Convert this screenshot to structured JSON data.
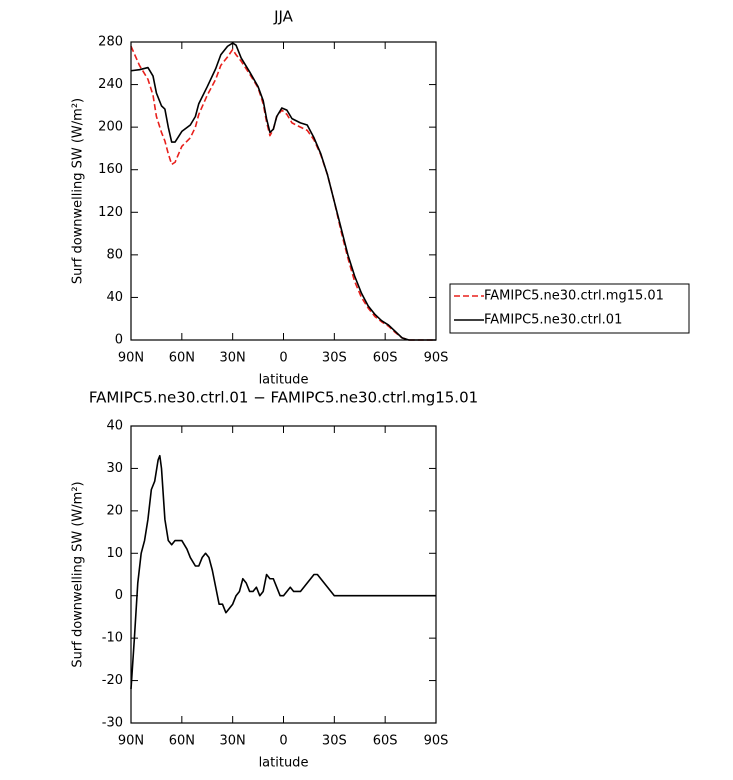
{
  "chart_data": [
    {
      "type": "line",
      "title": "JJA",
      "x_label": "latitude",
      "y_label": "Surf downwelling SW (W/m²)",
      "x": [
        90,
        85,
        80,
        77,
        75,
        72,
        70,
        68,
        66,
        64,
        60,
        55,
        52,
        50,
        45,
        40,
        37,
        33,
        30,
        28,
        25,
        20,
        15,
        12,
        10,
        8,
        6,
        4,
        1,
        -2,
        -5,
        -10,
        -14,
        -18,
        -22,
        -26,
        -30,
        -34,
        -38,
        -42,
        -46,
        -50,
        -54,
        -58,
        -62,
        -66,
        -70,
        -74,
        -80,
        -85,
        -90
      ],
      "xlim": [
        90,
        -90
      ],
      "xticks": [
        {
          "value": 90,
          "label": "90N"
        },
        {
          "value": 60,
          "label": "60N"
        },
        {
          "value": 30,
          "label": "30N"
        },
        0,
        {
          "value": -30,
          "label": "30S"
        },
        {
          "value": -60,
          "label": "60S"
        },
        {
          "value": -90,
          "label": "90S"
        }
      ],
      "ylim": [
        0,
        280
      ],
      "yticks": [
        0,
        40,
        80,
        120,
        160,
        200,
        240,
        280
      ],
      "legend": "outside-right",
      "series": [
        {
          "name": "FAMIPC5.ne30.ctrl.mg15.01",
          "color": "#e8201c",
          "linestyle": "dashed",
          "values": [
            276,
            258,
            245,
            230,
            210,
            195,
            187,
            175,
            165,
            167,
            182,
            190,
            200,
            212,
            230,
            245,
            258,
            266,
            273,
            268,
            262,
            250,
            237,
            222,
            205,
            192,
            198,
            210,
            216,
            212,
            204,
            200,
            197,
            188,
            174,
            155,
            130,
            102,
            77,
            55,
            40,
            30,
            22,
            17,
            13,
            7,
            2,
            0,
            0,
            0,
            0
          ]
        },
        {
          "name": "FAMIPC5.ne30.ctrl.01",
          "color": "#000000",
          "linestyle": "solid",
          "values": [
            253,
            254,
            256,
            248,
            232,
            220,
            217,
            200,
            186,
            186,
            196,
            202,
            210,
            222,
            238,
            255,
            268,
            276,
            279,
            277,
            265,
            252,
            238,
            225,
            208,
            195,
            198,
            210,
            218,
            216,
            208,
            204,
            202,
            190,
            175,
            155,
            130,
            105,
            80,
            60,
            44,
            32,
            24,
            18,
            14,
            8,
            2,
            0,
            0,
            0,
            0
          ]
        }
      ]
    },
    {
      "type": "line",
      "title": "FAMIPC5.ne30.ctrl.01 − FAMIPC5.ne30.ctrl.mg15.01",
      "x_label": "latitude",
      "y_label": "Surf downwelling SW (W/m²)",
      "x": [
        90,
        88,
        86,
        84,
        82,
        80,
        78,
        76,
        74,
        73,
        72,
        70,
        68,
        66,
        64,
        62,
        60,
        57,
        55,
        52,
        50,
        48,
        46,
        44,
        42,
        40,
        38,
        36,
        34,
        32,
        30,
        28,
        26,
        24,
        22,
        20,
        18,
        16,
        14,
        12,
        10,
        8,
        6,
        4,
        2,
        0,
        -2,
        -4,
        -6,
        -8,
        -10,
        -12,
        -14,
        -16,
        -18,
        -20,
        -22,
        -24,
        -26,
        -28,
        -30,
        -40,
        -50,
        -60,
        -70,
        -80,
        -90
      ],
      "xlim": [
        90,
        -90
      ],
      "xticks": [
        {
          "value": 90,
          "label": "90N"
        },
        {
          "value": 60,
          "label": "60N"
        },
        {
          "value": 30,
          "label": "30N"
        },
        0,
        {
          "value": -30,
          "label": "30S"
        },
        {
          "value": -60,
          "label": "60S"
        },
        {
          "value": -90,
          "label": "90S"
        }
      ],
      "ylim": [
        -30,
        40
      ],
      "yticks": [
        -30,
        -20,
        -10,
        0,
        10,
        20,
        30,
        40
      ],
      "series": [
        {
          "color": "#000000",
          "linestyle": "solid",
          "values": [
            -22,
            -10,
            3,
            10,
            13,
            18,
            25,
            27,
            32,
            33,
            30,
            18,
            13,
            12,
            13,
            13,
            13,
            11,
            9,
            7,
            7,
            9,
            10,
            9,
            6,
            2,
            -2,
            -2,
            -4,
            -3,
            -2,
            0,
            1,
            4,
            3,
            1,
            1,
            2,
            0,
            1,
            5,
            4,
            4,
            2,
            0,
            0,
            1,
            2,
            1,
            1,
            1,
            2,
            3,
            4,
            5,
            5,
            4,
            3,
            2,
            1,
            0,
            0,
            0,
            0,
            0,
            0,
            0
          ]
        }
      ]
    }
  ]
}
